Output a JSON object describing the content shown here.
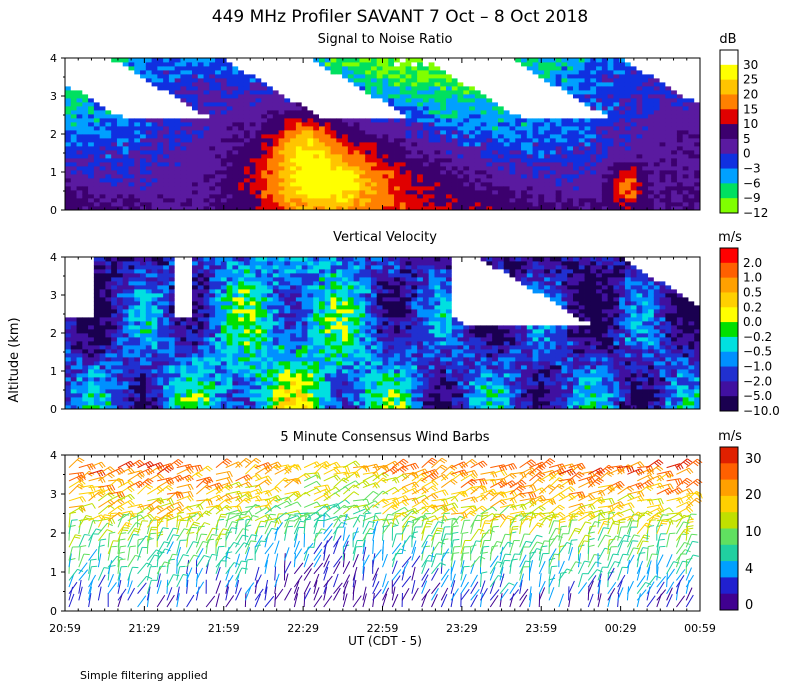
{
  "header": {
    "title": "449 MHz Profiler SAVANT  7 Oct –  8 Oct 2018",
    "footnote": "Simple filtering applied"
  },
  "chart_data": [
    {
      "type": "heatmap",
      "title": "Signal to Noise Ratio",
      "xlabel": "UT  (CDT - 5)",
      "ylabel": "Altitude (km)",
      "yticks": [
        "0",
        "1",
        "2",
        "3",
        "4"
      ],
      "ylim": [
        0,
        4
      ],
      "colorbar_unit": "dB",
      "colorbar_ticks": [
        "30",
        "25",
        "20",
        "15",
        "10",
        "5",
        "0",
        "−3",
        "−6",
        "−9",
        "−12"
      ],
      "colors": [
        "#ffffff",
        "#ffff00",
        "#ffc400",
        "#ff8000",
        "#e00000",
        "#3c006e",
        "#5a1aa0",
        "#1030e0",
        "#00a0ff",
        "#00e060",
        "#80ff00"
      ]
    },
    {
      "type": "heatmap",
      "title": "Vertical Velocity",
      "ylabel": "Altitude (km)",
      "yticks": [
        "0",
        "1",
        "2",
        "3",
        "4"
      ],
      "ylim": [
        0,
        4
      ],
      "colorbar_unit": "m/s",
      "colorbar_ticks": [
        "2.0",
        "1.0",
        "0.5",
        "0.2",
        "0.0",
        "−0.2",
        "−0.5",
        "−1.0",
        "−2.0",
        "−5.0",
        "−10.0"
      ],
      "colors": [
        "#ff0000",
        "#ff6000",
        "#ffa000",
        "#ffd000",
        "#ffff00",
        "#00e000",
        "#00e0e0",
        "#0090ff",
        "#2030d0",
        "#4010a0",
        "#1a0050"
      ]
    },
    {
      "type": "scatter",
      "title": "5 Minute Consensus Wind Barbs",
      "xlabel": "UT  (CDT - 5)",
      "xticks": [
        "20:59",
        "21:29",
        "21:59",
        "22:29",
        "22:59",
        "23:29",
        "23:59",
        "00:29",
        "00:59"
      ],
      "yticks": [
        "0",
        "1",
        "2",
        "3",
        "4"
      ],
      "ylim": [
        0,
        4
      ],
      "colorbar_unit": "m/s",
      "colorbar_ticks": [
        "30",
        "20",
        "10",
        "4",
        "0"
      ],
      "colors": [
        "#e02000",
        "#ff6000",
        "#ffa000",
        "#ffd000",
        "#c0e000",
        "#60e060",
        "#20d0a0",
        "#00a0ff",
        "#2020d0",
        "#400090"
      ]
    }
  ]
}
